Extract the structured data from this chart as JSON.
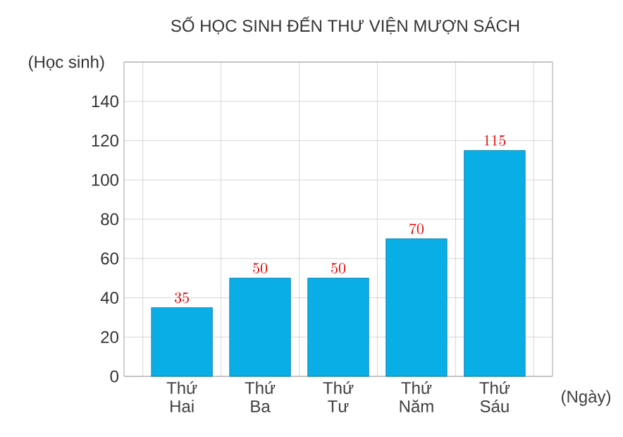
{
  "chart_data": {
    "type": "bar",
    "title": "SỐ HỌC SINH ĐẾN THƯ VIỆN MƯỢN SÁCH",
    "xlabel": "(Ngày)",
    "ylabel": "(Học sinh)",
    "categories": [
      "Thứ Hai",
      "Thứ Ba",
      "Thứ Tư",
      "Thứ Năm",
      "Thứ Sáu"
    ],
    "values": [
      35,
      50,
      50,
      70,
      115
    ],
    "color": "#0aaee6",
    "ylim": [
      0,
      160
    ],
    "yticks": [
      0,
      20,
      40,
      60,
      80,
      100,
      120,
      140,
      {
        "value": 160,
        "label": null
      }
    ],
    "grid": true,
    "data_labels": true
  }
}
